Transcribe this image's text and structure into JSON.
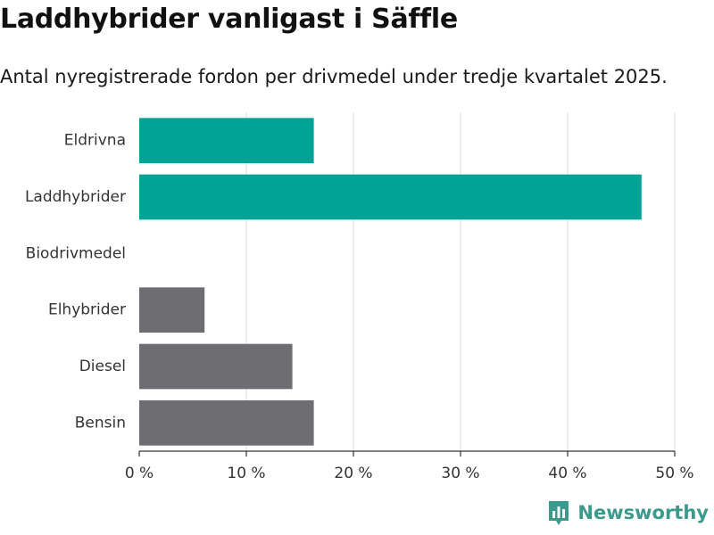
{
  "title": "Laddhybrider vanligast i Säffle",
  "subtitle": "Antal nyregistrerade fordon per drivmedel under tredje kvartalet 2025.",
  "brand": {
    "name": "Newsworthy",
    "color": "#3a9a8c",
    "icon": "newsworthy-logo-icon"
  },
  "colors": {
    "highlight": "#00a396",
    "default": "#6e6d72",
    "grid": "#dddddd"
  },
  "chart_data": {
    "type": "bar",
    "orientation": "horizontal",
    "categories": [
      "Eldrivna",
      "Laddhybrider",
      "Biodrivmedel",
      "Elhybrider",
      "Diesel",
      "Bensin"
    ],
    "values": [
      16.3,
      46.9,
      0,
      6.1,
      14.3,
      16.3
    ],
    "highlighted": [
      true,
      true,
      false,
      false,
      false,
      false
    ],
    "xlim": [
      0,
      50
    ],
    "ticks": [
      0,
      10,
      20,
      30,
      40,
      50
    ],
    "tick_labels": [
      "0 %",
      "10 %",
      "20 %",
      "30 %",
      "40 %",
      "50 %"
    ],
    "xlabel": "",
    "ylabel": "",
    "grid": true
  }
}
